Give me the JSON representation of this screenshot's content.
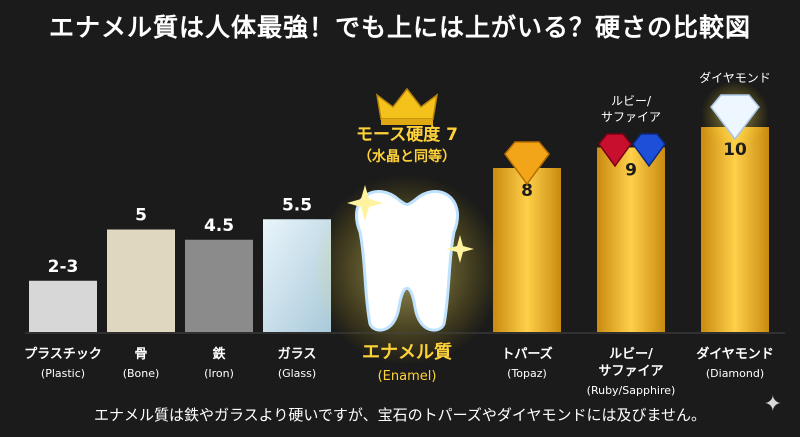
{
  "title": "エナメル質は人体最強！でも上には上がいる？硬さの比較図",
  "footer": "エナメル質は鉄やガラスより硬いですが、宝石のトパーズやダイヤモンドには及びません。",
  "callout": {
    "line1": "モース硬度 7",
    "line2": "（水晶と同等）"
  },
  "chart_data": {
    "type": "bar",
    "title": "エナメル質は人体最強！でも上には上がいる？硬さの比較図",
    "categories": [
      "プラスチック",
      "骨",
      "鉄",
      "ガラス",
      "エナメル質",
      "トパーズ",
      "ルビー/サファイア",
      "ダイヤモンド"
    ],
    "values": [
      2.5,
      5,
      4.5,
      5.5,
      7,
      8,
      9,
      10
    ],
    "value_labels": [
      "2-3",
      "5",
      "4.5",
      "5.5",
      "",
      "8",
      "9",
      "10"
    ],
    "category_labels": [
      {
        "ja": "プラスチック",
        "en": "(Plastic)"
      },
      {
        "ja": "骨",
        "en": "(Bone)"
      },
      {
        "ja": "鉄",
        "en": "(Iron)"
      },
      {
        "ja": "ガラス",
        "en": "(Glass)"
      },
      {
        "ja": "エナメル質",
        "en": "(Enamel)"
      },
      {
        "ja": "トパーズ",
        "en": "(Topaz)"
      },
      {
        "ja": "ルビー/\nサファイア",
        "en": "(Ruby/Sapphire)"
      },
      {
        "ja": "ダイヤモンド",
        "en": "(Diamond)"
      }
    ],
    "top_labels": [
      "",
      "",
      "",
      "",
      "",
      "",
      "ルビー/\nサファイア",
      "ダイヤモンド"
    ],
    "colors": [
      "#d7d7d7",
      "#e0d7c1",
      "#8b8b8b",
      "#cfe3ee",
      "#ffffff",
      "#f0b020",
      "#f0b020",
      "#f5c030"
    ],
    "ylim": [
      0,
      10.3
    ]
  }
}
